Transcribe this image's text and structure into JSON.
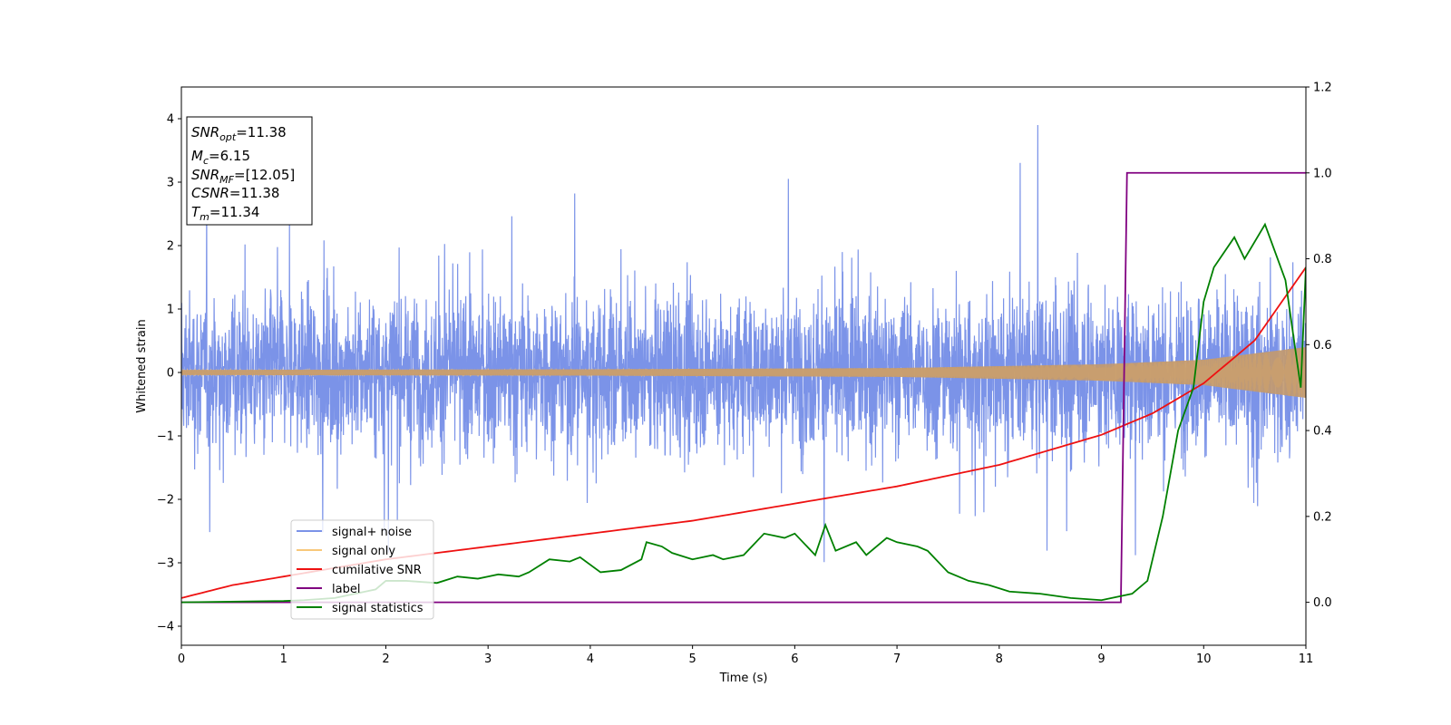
{
  "chart_data": {
    "type": "line",
    "xlabel": "Time (s)",
    "ylabel": "Whitened strain",
    "xlim": [
      0,
      11
    ],
    "ylim": [
      -4.3,
      4.5
    ],
    "ylim_right": [
      -0.1,
      1.2
    ],
    "x_ticks": [
      "0",
      "1",
      "2",
      "3",
      "4",
      "5",
      "6",
      "7",
      "8",
      "9",
      "10",
      "11"
    ],
    "y_ticks": [
      "4",
      "3",
      "2",
      "1",
      "0",
      "−1",
      "−2",
      "−3",
      "−4"
    ],
    "y_ticks_right": [
      "1.2",
      "1.0",
      "0.8",
      "0.6",
      "0.4",
      "0.2",
      "0.0"
    ],
    "grid": false,
    "legend_position": "lower-left",
    "annotation": [
      {
        "name": "SNR",
        "sub": "opt",
        "value": "=11.38"
      },
      {
        "name": "M",
        "sub": "c",
        "value": "=6.15"
      },
      {
        "name": "SNR",
        "sub": "MF",
        "value": "=[12.05]"
      },
      {
        "name": "CSNR",
        "sub": "",
        "value": "=11.38"
      },
      {
        "name": "T",
        "sub": "m",
        "value": "=11.34"
      }
    ],
    "series": [
      {
        "name": "signal+ noise",
        "axis": "left",
        "color": "#7b93e8",
        "description_envelope": [
          [
            0,
            -2.5,
            2.6
          ],
          [
            11,
            -2.5,
            2.6
          ]
        ],
        "noise_peaks_max": 3.9,
        "noise_peaks_min": -3.8
      },
      {
        "name": "signal only",
        "axis": "left",
        "color": "#f8c87a",
        "amplitude": [
          [
            0,
            0.04
          ],
          [
            4,
            0.05
          ],
          [
            7,
            0.07
          ],
          [
            9,
            0.13
          ],
          [
            10,
            0.2
          ],
          [
            11,
            0.4
          ]
        ]
      },
      {
        "name": "cumilative SNR",
        "axis": "right",
        "color": "#ee1111",
        "x": [
          0,
          0.5,
          1,
          2,
          3,
          4,
          5,
          6,
          7,
          8,
          9,
          9.5,
          10,
          10.5,
          11
        ],
        "y": [
          0.01,
          0.04,
          0.06,
          0.1,
          0.13,
          0.16,
          0.19,
          0.23,
          0.27,
          0.32,
          0.39,
          0.44,
          0.51,
          0.61,
          0.78
        ]
      },
      {
        "name": "label",
        "axis": "right",
        "color": "#800080",
        "x": [
          0,
          9.19,
          9.25,
          11
        ],
        "y": [
          0,
          0,
          1,
          1
        ]
      },
      {
        "name": "signal statistics",
        "axis": "right",
        "color": "#008000",
        "x": [
          0,
          1,
          1.2,
          1.5,
          1.7,
          1.9,
          2.0,
          2.2,
          2.5,
          2.7,
          2.9,
          3.1,
          3.3,
          3.4,
          3.6,
          3.8,
          3.9,
          4.1,
          4.3,
          4.5,
          4.55,
          4.7,
          4.8,
          5.0,
          5.2,
          5.3,
          5.5,
          5.7,
          5.8,
          5.9,
          6.0,
          6.2,
          6.3,
          6.4,
          6.6,
          6.7,
          6.9,
          7.0,
          7.2,
          7.3,
          7.5,
          7.7,
          7.9,
          8.1,
          8.4,
          8.7,
          9.0,
          9.3,
          9.45,
          9.6,
          9.75,
          9.9,
          10.0,
          10.1,
          10.3,
          10.4,
          10.6,
          10.8,
          10.95,
          11.0
        ],
        "y": [
          0,
          0.003,
          0.005,
          0.01,
          0.02,
          0.03,
          0.05,
          0.05,
          0.045,
          0.06,
          0.055,
          0.065,
          0.06,
          0.07,
          0.1,
          0.095,
          0.105,
          0.07,
          0.075,
          0.1,
          0.14,
          0.13,
          0.115,
          0.1,
          0.11,
          0.1,
          0.11,
          0.16,
          0.155,
          0.15,
          0.16,
          0.11,
          0.18,
          0.12,
          0.14,
          0.11,
          0.15,
          0.14,
          0.13,
          0.12,
          0.07,
          0.05,
          0.04,
          0.025,
          0.02,
          0.01,
          0.005,
          0.02,
          0.05,
          0.2,
          0.4,
          0.5,
          0.7,
          0.78,
          0.85,
          0.8,
          0.88,
          0.75,
          0.5,
          0.78
        ]
      }
    ]
  }
}
